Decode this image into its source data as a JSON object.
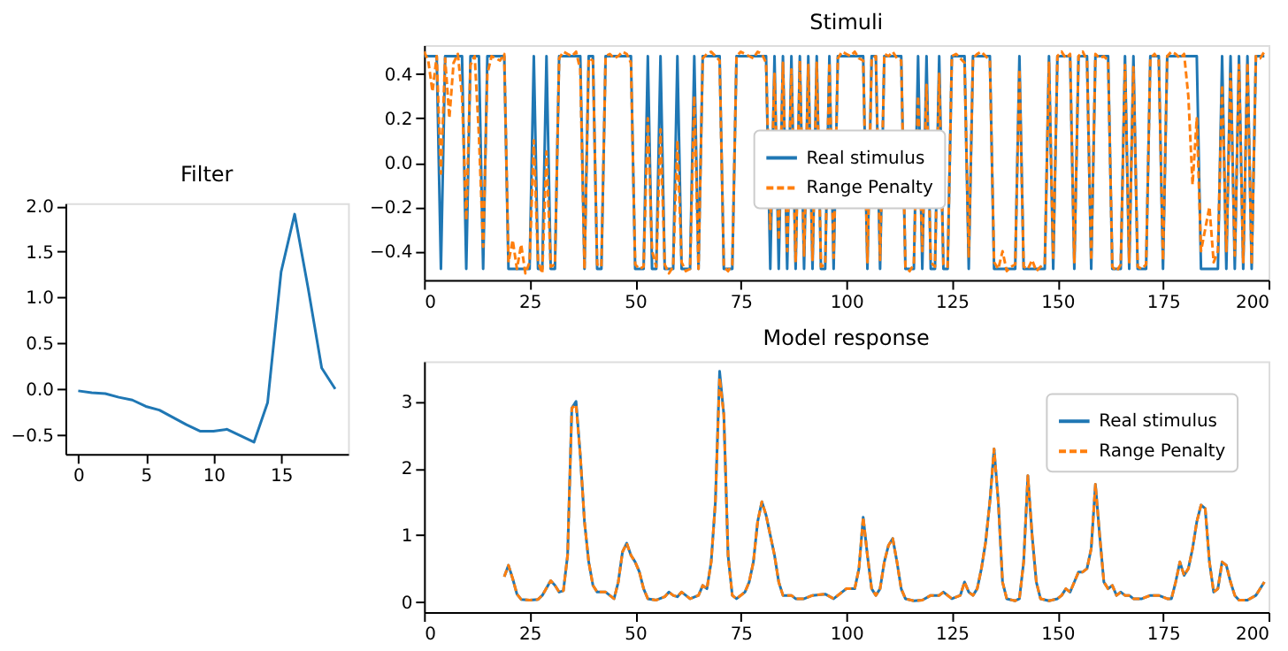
{
  "chart_data": [
    {
      "type": "line",
      "title": "Filter",
      "x": [
        0,
        1,
        2,
        3,
        4,
        5,
        6,
        7,
        8,
        9,
        10,
        11,
        12,
        13,
        14,
        15,
        16,
        17,
        18,
        19
      ],
      "series": [
        {
          "color": "#1f77b4",
          "values": [
            -0.02,
            -0.04,
            -0.05,
            -0.09,
            -0.12,
            -0.19,
            -0.23,
            -0.31,
            -0.39,
            -0.46,
            -0.46,
            -0.44,
            -0.51,
            -0.58,
            -0.15,
            1.28,
            1.91,
            1.1,
            0.23,
            0.0
          ]
        }
      ],
      "xlim": [
        -0.95,
        19.95
      ],
      "xticks": [
        0,
        5,
        10,
        15
      ],
      "ylim": [
        -0.71,
        2.03
      ],
      "yticks": [
        {
          "value": -0.5,
          "label": "−0.5"
        },
        {
          "value": 0,
          "label": "0.0"
        },
        0.5,
        {
          "value": 1,
          "label": "1.0"
        },
        1.5,
        {
          "value": 2,
          "label": "2.0"
        }
      ],
      "legend": false
    },
    {
      "type": "line",
      "title": "Stimuli",
      "x": [
        0,
        1,
        2,
        3,
        4,
        5,
        6,
        7,
        8,
        9,
        10,
        11,
        12,
        13,
        14,
        15,
        16,
        17,
        18,
        19,
        20,
        21,
        22,
        23,
        24,
        25,
        26,
        27,
        28,
        29,
        30,
        31,
        32,
        33,
        34,
        35,
        36,
        37,
        38,
        39,
        40,
        41,
        42,
        43,
        44,
        45,
        46,
        47,
        48,
        49,
        50,
        51,
        52,
        53,
        54,
        55,
        56,
        57,
        58,
        59,
        60,
        61,
        62,
        63,
        64,
        65,
        66,
        67,
        68,
        69,
        70,
        71,
        72,
        73,
        74,
        75,
        76,
        77,
        78,
        79,
        80,
        81,
        82,
        83,
        84,
        85,
        86,
        87,
        88,
        89,
        90,
        91,
        92,
        93,
        94,
        95,
        96,
        97,
        98,
        99,
        100,
        101,
        102,
        103,
        104,
        105,
        106,
        107,
        108,
        109,
        110,
        111,
        112,
        113,
        114,
        115,
        116,
        117,
        118,
        119,
        120,
        121,
        122,
        123,
        124,
        125,
        126,
        127,
        128,
        129,
        130,
        131,
        132,
        133,
        134,
        135,
        136,
        137,
        138,
        139,
        140,
        141,
        142,
        143,
        144,
        145,
        146,
        147,
        148,
        149,
        150,
        151,
        152,
        153,
        154,
        155,
        156,
        157,
        158,
        159,
        160,
        161,
        162,
        163,
        164,
        165,
        166,
        167,
        168,
        169,
        170,
        171,
        172,
        173,
        174,
        175,
        176,
        177,
        178,
        179,
        180,
        181,
        182,
        183,
        184,
        185,
        186,
        187,
        188,
        189,
        190,
        191,
        192,
        193,
        194,
        195,
        196,
        197,
        198,
        199
      ],
      "series": [
        {
          "name": "Real stimulus",
          "color": "#1f77b4",
          "line_style": "solid",
          "values": [
            0.48,
            0.48,
            0.48,
            0.48,
            -0.48,
            0.48,
            0.48,
            0.48,
            0.48,
            0.48,
            -0.48,
            0.48,
            0.48,
            0.48,
            -0.48,
            0.48,
            0.48,
            0.48,
            0.48,
            0.48,
            -0.48,
            -0.48,
            -0.48,
            -0.48,
            -0.48,
            -0.48,
            0.48,
            -0.48,
            -0.48,
            0.48,
            -0.48,
            -0.48,
            0.48,
            0.48,
            0.48,
            0.48,
            0.48,
            0.48,
            -0.48,
            0.48,
            0.48,
            -0.48,
            -0.48,
            0.48,
            0.48,
            0.48,
            0.48,
            0.48,
            0.48,
            0.48,
            -0.48,
            -0.48,
            -0.48,
            0.48,
            -0.48,
            -0.48,
            0.48,
            -0.48,
            -0.48,
            -0.48,
            0.48,
            -0.48,
            -0.48,
            -0.48,
            0.48,
            -0.48,
            0.48,
            0.48,
            0.48,
            0.48,
            0.48,
            -0.48,
            -0.48,
            -0.48,
            0.48,
            0.48,
            0.48,
            0.48,
            0.48,
            0.48,
            0.48,
            0.48,
            -0.48,
            0.48,
            -0.48,
            0.48,
            -0.48,
            0.48,
            -0.48,
            0.48,
            -0.48,
            0.48,
            -0.48,
            0.48,
            -0.48,
            -0.48,
            0.48,
            -0.48,
            0.48,
            0.48,
            0.48,
            0.48,
            0.48,
            0.48,
            0.48,
            -0.48,
            0.48,
            0.48,
            -0.48,
            0.48,
            0.48,
            0.48,
            0.48,
            0.48,
            -0.48,
            -0.48,
            -0.48,
            0.48,
            -0.48,
            0.48,
            -0.48,
            -0.48,
            0.48,
            -0.48,
            -0.48,
            0.48,
            0.48,
            0.48,
            0.48,
            -0.48,
            0.48,
            0.48,
            0.48,
            0.48,
            0.48,
            -0.48,
            -0.48,
            -0.48,
            -0.48,
            -0.48,
            -0.48,
            0.48,
            -0.48,
            -0.48,
            -0.48,
            -0.48,
            -0.48,
            -0.48,
            0.48,
            -0.48,
            0.48,
            0.48,
            0.48,
            0.48,
            -0.48,
            0.48,
            0.48,
            0.48,
            -0.48,
            0.48,
            0.48,
            0.48,
            0.48,
            -0.48,
            -0.48,
            -0.48,
            0.48,
            -0.48,
            0.48,
            -0.48,
            -0.48,
            -0.48,
            0.48,
            0.48,
            0.48,
            -0.48,
            0.48,
            0.48,
            0.48,
            0.48,
            0.48,
            0.48,
            0.48,
            0.48,
            -0.48,
            -0.48,
            -0.48,
            -0.48,
            -0.48,
            0.48,
            -0.48,
            0.48,
            -0.48,
            0.48,
            -0.48,
            0.48,
            -0.48,
            0.48,
            0.48,
            0.48
          ]
        },
        {
          "name": "Range Penalty",
          "color": "#ff7f0e",
          "line_style": "dashed",
          "values": [
            0.5,
            0.46,
            0.32,
            0.48,
            -0.05,
            0.47,
            0.2,
            0.45,
            0.49,
            0.3,
            -0.26,
            0.44,
            0.48,
            0.12,
            -0.38,
            0.4,
            0.48,
            0.47,
            0.46,
            0.49,
            -0.45,
            -0.35,
            -0.48,
            -0.37,
            -0.5,
            -0.45,
            0.1,
            -0.45,
            -0.5,
            0.05,
            -0.47,
            -0.46,
            0.47,
            0.5,
            0.49,
            0.48,
            0.5,
            0.42,
            -0.48,
            0.47,
            0.46,
            -0.46,
            -0.47,
            0.48,
            0.49,
            0.47,
            0.48,
            0.5,
            0.49,
            0.45,
            -0.46,
            -0.48,
            -0.47,
            0.2,
            -0.4,
            -0.47,
            0.15,
            -0.46,
            -0.5,
            -0.47,
            0.1,
            -0.45,
            -0.49,
            -0.48,
            0.3,
            -0.48,
            0.47,
            0.49,
            0.5,
            0.48,
            0.46,
            -0.47,
            -0.49,
            -0.46,
            0.48,
            0.5,
            0.49,
            0.48,
            0.47,
            0.5,
            0.49,
            0.45,
            -0.3,
            0.4,
            -0.35,
            0.45,
            -0.4,
            0.42,
            -0.45,
            0.46,
            -0.42,
            0.44,
            -0.44,
            0.45,
            -0.47,
            -0.46,
            0.45,
            -0.43,
            0.47,
            0.5,
            0.49,
            0.48,
            0.5,
            0.47,
            0.46,
            -0.45,
            0.47,
            0.48,
            -0.44,
            0.49,
            0.48,
            0.5,
            0.47,
            0.46,
            -0.47,
            -0.49,
            -0.46,
            0.3,
            -0.4,
            0.35,
            -0.45,
            -0.47,
            0.4,
            -0.46,
            -0.47,
            0.48,
            0.49,
            0.47,
            0.45,
            -0.43,
            0.47,
            0.49,
            0.5,
            0.48,
            0.46,
            -0.45,
            -0.48,
            -0.4,
            -0.49,
            -0.47,
            -0.46,
            0.42,
            -0.47,
            -0.48,
            -0.44,
            -0.49,
            -0.47,
            -0.46,
            0.45,
            -0.43,
            0.48,
            0.5,
            0.47,
            0.49,
            -0.45,
            0.48,
            0.5,
            0.46,
            -0.44,
            0.49,
            0.47,
            0.48,
            0.46,
            -0.47,
            -0.49,
            -0.46,
            0.44,
            -0.45,
            0.43,
            -0.47,
            -0.48,
            -0.46,
            0.47,
            0.49,
            0.46,
            -0.44,
            0.48,
            0.5,
            0.49,
            0.47,
            0.49,
            0.3,
            -0.1,
            0.2,
            -0.4,
            -0.3,
            -0.2,
            -0.45,
            -0.4,
            0.35,
            -0.4,
            0.4,
            -0.42,
            0.44,
            -0.45,
            0.45,
            -0.46,
            0.48,
            0.47,
            0.5
          ]
        }
      ],
      "xlim": [
        0,
        200
      ],
      "xticks": [
        0,
        25,
        50,
        75,
        100,
        125,
        150,
        175,
        200
      ],
      "ylim": [
        -0.53,
        0.53
      ],
      "yticks": [
        {
          "value": -0.4,
          "label": "−0.4"
        },
        {
          "value": -0.2,
          "label": "−0.2"
        },
        {
          "value": 0,
          "label": "0.0"
        },
        0.2,
        0.4
      ],
      "legend": "center"
    },
    {
      "type": "line",
      "title": "Model response",
      "series": [
        {
          "name": "Real stimulus",
          "color": "#1f77b4",
          "line_style": "solid",
          "x": [
            19,
            20,
            21,
            22,
            23,
            25,
            27,
            28,
            30,
            31,
            32,
            33,
            34,
            35,
            36,
            37,
            38,
            39,
            40,
            41,
            43,
            44,
            45,
            46,
            47,
            48,
            49,
            50,
            51,
            52,
            53,
            55,
            57,
            58,
            59,
            60,
            61,
            62,
            63,
            65,
            66,
            67,
            68,
            69,
            70,
            71,
            72,
            73,
            74,
            76,
            77,
            78,
            79,
            80,
            81,
            82,
            83,
            84,
            85,
            87,
            88,
            90,
            92,
            95,
            97,
            99,
            100,
            102,
            103,
            104,
            105,
            106,
            107,
            108,
            109,
            110,
            111,
            112,
            113,
            114,
            116,
            118,
            120,
            122,
            123,
            125,
            127,
            128,
            129,
            130,
            131,
            132,
            133,
            134,
            135,
            136,
            137,
            138,
            140,
            141,
            142,
            143,
            144,
            145,
            146,
            148,
            150,
            151,
            152,
            153,
            154,
            155,
            156,
            157,
            158,
            159,
            160,
            161,
            162,
            163,
            164,
            165,
            166,
            167,
            168,
            170,
            172,
            174,
            176,
            177,
            178,
            179,
            180,
            181,
            182,
            183,
            184,
            185,
            186,
            187,
            188,
            189,
            190,
            191,
            192,
            193,
            195,
            197,
            199
          ],
          "values": [
            0.38,
            0.55,
            0.35,
            0.12,
            0.04,
            0.03,
            0.04,
            0.1,
            0.32,
            0.25,
            0.15,
            0.17,
            0.7,
            2.9,
            3.0,
            2.2,
            1.2,
            0.6,
            0.25,
            0.15,
            0.15,
            0.1,
            0.05,
            0.3,
            0.75,
            0.88,
            0.7,
            0.6,
            0.45,
            0.2,
            0.05,
            0.03,
            0.08,
            0.15,
            0.1,
            0.08,
            0.15,
            0.1,
            0.05,
            0.1,
            0.25,
            0.2,
            0.6,
            1.5,
            3.45,
            2.8,
            0.7,
            0.1,
            0.05,
            0.15,
            0.3,
            0.6,
            1.2,
            1.5,
            1.3,
            1.0,
            0.7,
            0.3,
            0.1,
            0.1,
            0.05,
            0.05,
            0.1,
            0.12,
            0.05,
            0.15,
            0.2,
            0.2,
            0.5,
            1.27,
            0.7,
            0.2,
            0.1,
            0.2,
            0.6,
            0.85,
            0.95,
            0.6,
            0.2,
            0.05,
            0.02,
            0.03,
            0.1,
            0.1,
            0.15,
            0.05,
            0.1,
            0.3,
            0.15,
            0.1,
            0.2,
            0.5,
            0.9,
            1.5,
            2.29,
            1.5,
            0.3,
            0.05,
            0.02,
            0.05,
            0.6,
            1.89,
            1.0,
            0.3,
            0.05,
            0.02,
            0.05,
            0.1,
            0.2,
            0.15,
            0.3,
            0.45,
            0.45,
            0.5,
            0.8,
            1.76,
            1.0,
            0.3,
            0.2,
            0.25,
            0.1,
            0.15,
            0.1,
            0.1,
            0.05,
            0.05,
            0.1,
            0.1,
            0.05,
            0.05,
            0.3,
            0.6,
            0.4,
            0.5,
            0.8,
            1.2,
            1.45,
            1.4,
            0.6,
            0.15,
            0.2,
            0.6,
            0.55,
            0.3,
            0.1,
            0.03,
            0.03,
            0.1,
            0.3
          ]
        },
        {
          "name": "Range Penalty",
          "color": "#ff7f0e",
          "line_style": "dashed",
          "x": [
            19,
            20,
            21,
            22,
            23,
            25,
            27,
            28,
            30,
            31,
            32,
            33,
            34,
            35,
            36,
            37,
            38,
            39,
            40,
            41,
            43,
            44,
            45,
            46,
            47,
            48,
            49,
            50,
            51,
            52,
            53,
            55,
            57,
            58,
            59,
            60,
            61,
            62,
            63,
            65,
            66,
            67,
            68,
            69,
            70,
            71,
            72,
            73,
            74,
            76,
            77,
            78,
            79,
            80,
            81,
            82,
            83,
            84,
            85,
            87,
            88,
            90,
            92,
            95,
            97,
            99,
            100,
            102,
            103,
            104,
            105,
            106,
            107,
            108,
            109,
            110,
            111,
            112,
            113,
            114,
            116,
            118,
            120,
            122,
            123,
            125,
            127,
            128,
            129,
            130,
            131,
            132,
            133,
            134,
            135,
            136,
            137,
            138,
            140,
            141,
            142,
            143,
            144,
            145,
            146,
            148,
            150,
            151,
            152,
            153,
            154,
            155,
            156,
            157,
            158,
            159,
            160,
            161,
            162,
            163,
            164,
            165,
            166,
            167,
            168,
            170,
            172,
            174,
            176,
            177,
            178,
            179,
            180,
            181,
            182,
            183,
            184,
            185,
            186,
            187,
            188,
            189,
            190,
            191,
            192,
            193,
            195,
            197,
            199
          ],
          "values": [
            0.38,
            0.55,
            0.35,
            0.12,
            0.04,
            0.03,
            0.04,
            0.1,
            0.32,
            0.25,
            0.15,
            0.17,
            0.7,
            2.9,
            2.95,
            2.2,
            1.2,
            0.6,
            0.25,
            0.15,
            0.15,
            0.1,
            0.05,
            0.3,
            0.75,
            0.88,
            0.7,
            0.6,
            0.45,
            0.2,
            0.05,
            0.03,
            0.08,
            0.15,
            0.1,
            0.08,
            0.15,
            0.1,
            0.05,
            0.1,
            0.25,
            0.2,
            0.6,
            1.5,
            3.35,
            2.8,
            0.7,
            0.1,
            0.05,
            0.15,
            0.3,
            0.6,
            1.2,
            1.5,
            1.3,
            1.0,
            0.7,
            0.3,
            0.1,
            0.1,
            0.05,
            0.05,
            0.1,
            0.12,
            0.05,
            0.15,
            0.2,
            0.2,
            0.5,
            1.27,
            0.7,
            0.2,
            0.1,
            0.2,
            0.6,
            0.85,
            0.95,
            0.6,
            0.2,
            0.05,
            0.02,
            0.03,
            0.1,
            0.1,
            0.15,
            0.05,
            0.1,
            0.3,
            0.15,
            0.1,
            0.2,
            0.5,
            0.9,
            1.5,
            2.29,
            1.5,
            0.3,
            0.05,
            0.02,
            0.05,
            0.6,
            1.89,
            1.0,
            0.3,
            0.05,
            0.02,
            0.05,
            0.1,
            0.2,
            0.15,
            0.3,
            0.45,
            0.45,
            0.5,
            0.8,
            1.76,
            1.0,
            0.3,
            0.2,
            0.25,
            0.1,
            0.15,
            0.1,
            0.1,
            0.05,
            0.05,
            0.1,
            0.1,
            0.05,
            0.05,
            0.3,
            0.6,
            0.4,
            0.5,
            0.8,
            1.2,
            1.45,
            1.4,
            0.6,
            0.15,
            0.2,
            0.6,
            0.55,
            0.3,
            0.1,
            0.03,
            0.03,
            0.1,
            0.3
          ]
        }
      ],
      "xlim": [
        0,
        200
      ],
      "xticks": [
        0,
        25,
        50,
        75,
        100,
        125,
        150,
        175,
        200
      ],
      "ylim": [
        -0.15,
        3.6
      ],
      "yticks": [
        0,
        1,
        2,
        3
      ],
      "legend": "top right"
    }
  ]
}
